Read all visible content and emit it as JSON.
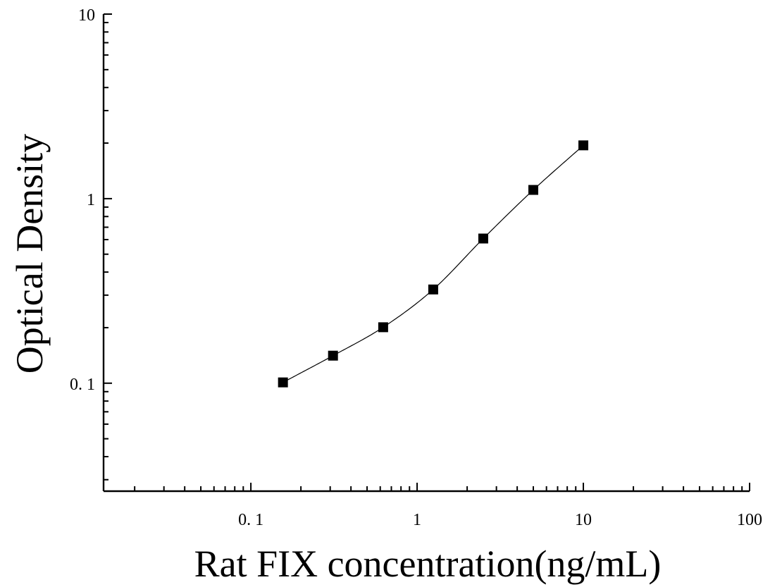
{
  "chart_data": {
    "type": "scatter",
    "title": "",
    "xlabel": "Rat FIX concentration(ng/mL)",
    "ylabel": "Optical Density",
    "xscale": "log",
    "yscale": "log",
    "xlim": [
      0.013,
      100
    ],
    "ylim": [
      0.026,
      10
    ],
    "grid": false,
    "legend": "none",
    "x_ticks": [
      {
        "value": 0.1,
        "label": "0. 1"
      },
      {
        "value": 1,
        "label": "1"
      },
      {
        "value": 10,
        "label": "10"
      },
      {
        "value": 100,
        "label": "100"
      }
    ],
    "y_ticks": [
      {
        "value": 0.1,
        "label": "0. 1"
      },
      {
        "value": 1,
        "label": "1"
      },
      {
        "value": 10,
        "label": "10"
      }
    ],
    "series": [
      {
        "marker": "square",
        "color": "#000000",
        "fit_line": true,
        "x": [
          0.156,
          0.312,
          0.625,
          1.25,
          2.5,
          5,
          10
        ],
        "y": [
          0.101,
          0.141,
          0.201,
          0.322,
          0.608,
          1.115,
          1.944
        ]
      }
    ]
  }
}
